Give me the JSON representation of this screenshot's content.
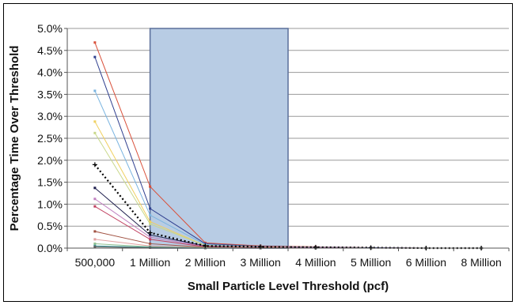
{
  "chart_data": {
    "type": "line",
    "title": "",
    "xlabel": "Small Particle Level Threshold (pcf)",
    "ylabel": "Percentage Time Over Threshold",
    "categories": [
      "500,000",
      "1 Million",
      "2 Million",
      "3 Million",
      "4 Million",
      "5 Million",
      "6 Million",
      "8 Million"
    ],
    "y_ticks": [
      "0.0%",
      "0.5%",
      "1.0%",
      "1.5%",
      "2.0%",
      "2.5%",
      "3.0%",
      "3.5%",
      "4.0%",
      "4.5%",
      "5.0%"
    ],
    "ylim": [
      0,
      5
    ],
    "grid": "horizontal",
    "highlight_region": {
      "from_category": "1 Million",
      "to_category": "4 Million",
      "ymax": 5.0,
      "color": "#b8cce4",
      "border": "#5a6e9a"
    },
    "series": [
      {
        "color": "#d9503a",
        "values": [
          4.68,
          1.4,
          0.12,
          0.05,
          0.03,
          0.01,
          0.0,
          0.0
        ]
      },
      {
        "color": "#2f3f8f",
        "values": [
          4.35,
          0.9,
          0.1,
          0.04,
          0.02,
          0.01,
          0.0,
          0.0
        ]
      },
      {
        "color": "#7ab4e0",
        "values": [
          3.58,
          0.75,
          0.08,
          0.03,
          0.02,
          0.0,
          0.0,
          0.0
        ]
      },
      {
        "color": "#f0d060",
        "values": [
          2.88,
          0.6,
          0.06,
          0.03,
          0.01,
          0.0,
          0.0,
          0.0
        ]
      },
      {
        "color": "#c8d88a",
        "values": [
          2.62,
          0.55,
          0.06,
          0.02,
          0.01,
          0.0,
          0.0,
          0.0
        ]
      },
      {
        "color": "#1a1a4a",
        "values": [
          1.37,
          0.3,
          0.05,
          0.02,
          0.01,
          0.0,
          0.0,
          0.0
        ]
      },
      {
        "color": "#c080c0",
        "values": [
          1.12,
          0.25,
          0.04,
          0.02,
          0.01,
          0.0,
          0.0,
          0.0
        ]
      },
      {
        "color": "#c04060",
        "values": [
          0.95,
          0.2,
          0.03,
          0.01,
          0.0,
          0.0,
          0.0,
          0.0
        ]
      },
      {
        "color": "#a05040",
        "values": [
          0.38,
          0.1,
          0.02,
          0.01,
          0.0,
          0.0,
          0.0,
          0.0
        ]
      },
      {
        "color": "#e0a0a0",
        "values": [
          0.2,
          0.05,
          0.01,
          0.0,
          0.0,
          0.0,
          0.0,
          0.0
        ]
      },
      {
        "color": "#90c090",
        "values": [
          0.1,
          0.03,
          0.01,
          0.0,
          0.0,
          0.0,
          0.0,
          0.0
        ]
      },
      {
        "color": "#40a0a0",
        "values": [
          0.05,
          0.02,
          0.0,
          0.0,
          0.0,
          0.0,
          0.0,
          0.0
        ]
      },
      {
        "color": "#606060",
        "values": [
          0.03,
          0.01,
          0.0,
          0.0,
          0.0,
          0.0,
          0.0,
          0.0
        ]
      },
      {
        "color": "#000000",
        "style": "dotted",
        "values": [
          1.9,
          0.35,
          0.05,
          0.03,
          0.02,
          0.01,
          0.0,
          0.0
        ]
      }
    ]
  }
}
